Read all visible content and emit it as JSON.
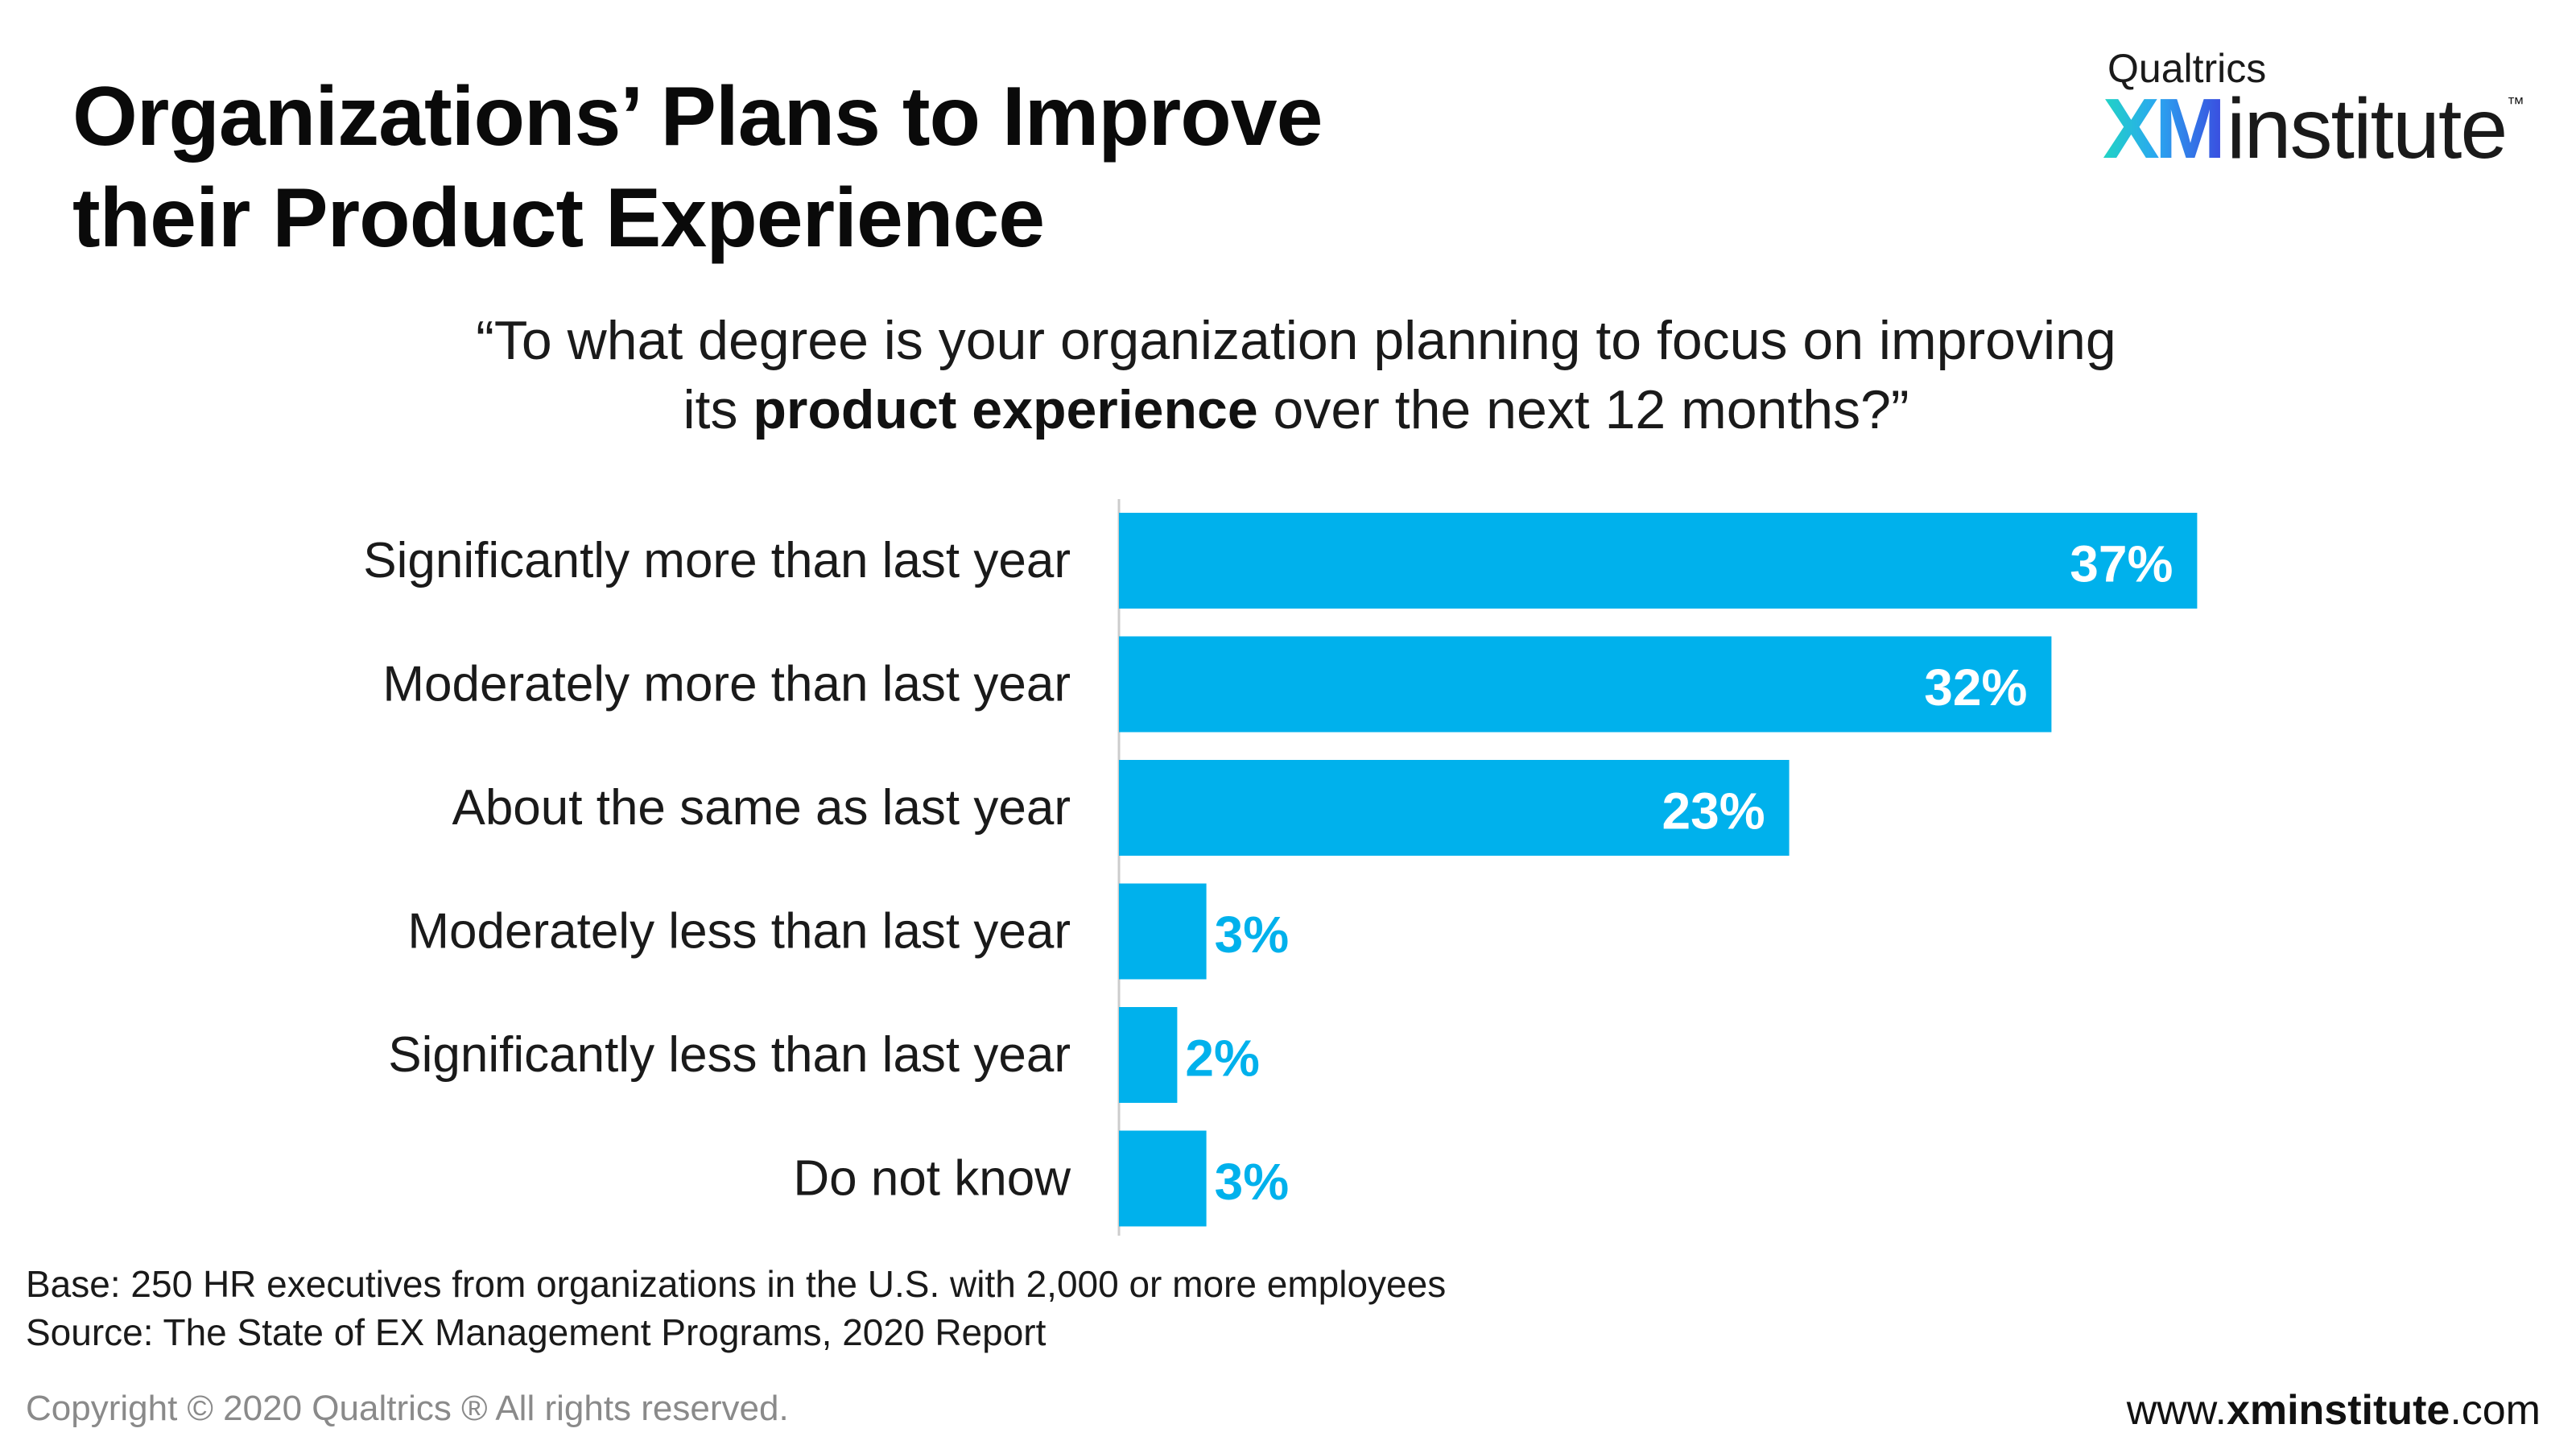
{
  "title": {
    "line1": "Organizations’ Plans to Improve",
    "line2": "their Product Experience"
  },
  "logo": {
    "brand": "Qualtrics",
    "xm": "XM",
    "institute": "institute",
    "tm": "™"
  },
  "question": {
    "line1": "“To what degree is your organization planning to focus on improving",
    "line2_pre": "its ",
    "line2_bold": "product experience",
    "line2_post": " over the next 12 months?”"
  },
  "chart_data": {
    "type": "bar",
    "orientation": "horizontal",
    "categories": [
      "Significantly more than last year",
      "Moderately more than last year",
      "About the same as last year",
      "Moderately less than last year",
      "Significantly less than last year",
      "Do not know"
    ],
    "values": [
      37,
      32,
      23,
      3,
      2,
      3
    ],
    "labels": [
      "37%",
      "32%",
      "23%",
      "3%",
      "2%",
      "3%"
    ],
    "title": "Organizations’ Plans to Improve their Product Experience",
    "xlabel": "",
    "ylabel": "",
    "grid": false,
    "legend": "none",
    "color": "#00b1ec"
  },
  "footnote": {
    "base": "Base: 250 HR executives from organizations in the U.S. with 2,000 or more employees",
    "source": "Source: The State of EX Management Programs, 2020 Report"
  },
  "copyright": "Copyright © 2020 Qualtrics ® All rights reserved.",
  "website": {
    "pre": "www.",
    "bold": "xminstitute",
    "post": ".com"
  }
}
